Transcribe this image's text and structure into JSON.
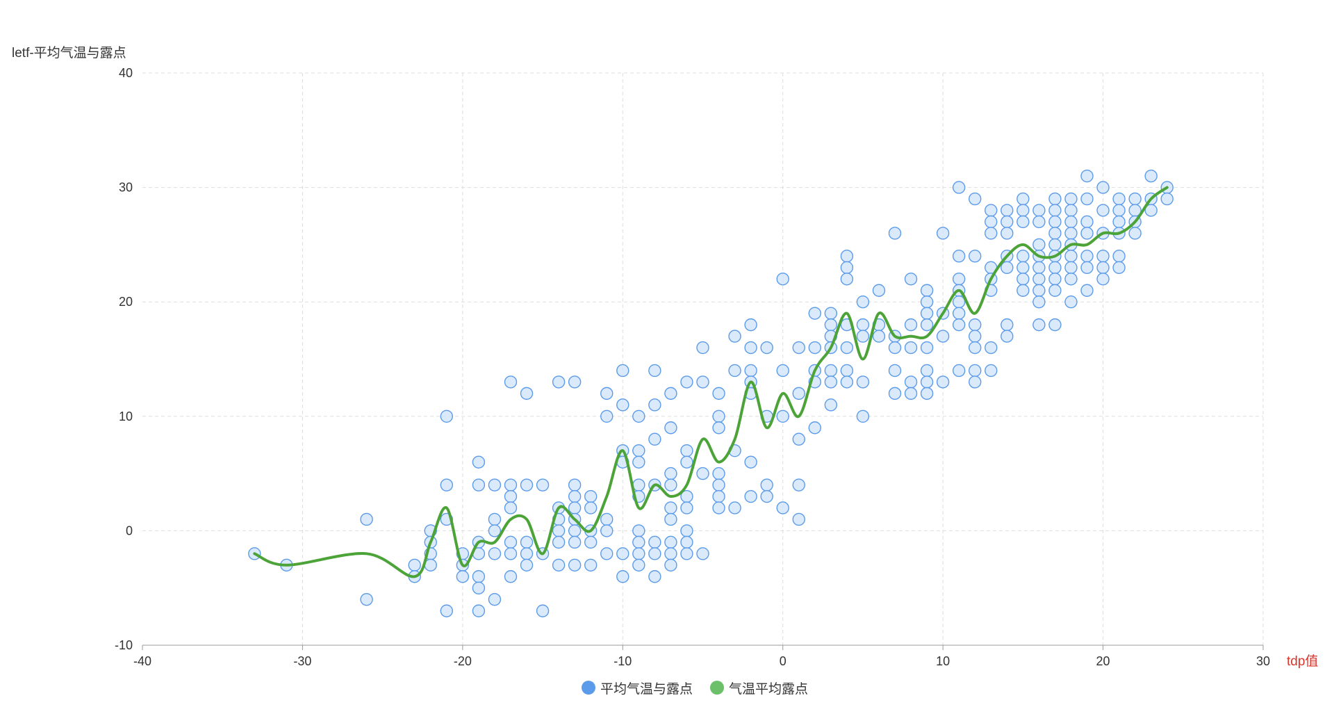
{
  "chart_data": {
    "type": "scatter",
    "ylabel": "letf-平均气温与露点",
    "xlabel": "tdp值",
    "xlim": [
      -40,
      30
    ],
    "ylim": [
      -10,
      40
    ],
    "xticks": [
      "-40",
      "-30",
      "-20",
      "-10",
      "0",
      "10",
      "20",
      "30"
    ],
    "yticks": [
      "-10",
      "0",
      "10",
      "20",
      "30",
      "40"
    ],
    "grid": true,
    "legend_position": "bottom-center",
    "colors": {
      "scatter_fill": "#cfe3fa",
      "scatter_stroke": "#5b9bea",
      "line": "#4ca337",
      "legend_scatter": "#5b9bea",
      "legend_line": "#6cc06a",
      "xlabel": "#d9342b"
    },
    "series": [
      {
        "name": "平均气温与露点",
        "type": "scatter",
        "points": [
          [
            -33,
            -2
          ],
          [
            -31,
            -3
          ],
          [
            -26,
            1
          ],
          [
            -26,
            -6
          ],
          [
            -23,
            -3
          ],
          [
            -23,
            -4
          ],
          [
            -22,
            0
          ],
          [
            -22,
            -1
          ],
          [
            -22,
            -2
          ],
          [
            -22,
            -3
          ],
          [
            -21,
            10
          ],
          [
            -21,
            4
          ],
          [
            -21,
            1
          ],
          [
            -21,
            -7
          ],
          [
            -20,
            -2
          ],
          [
            -20,
            -3
          ],
          [
            -20,
            -4
          ],
          [
            -19,
            6
          ],
          [
            -19,
            4
          ],
          [
            -19,
            -1
          ],
          [
            -19,
            -2
          ],
          [
            -19,
            -4
          ],
          [
            -19,
            -5
          ],
          [
            -19,
            -7
          ],
          [
            -18,
            4
          ],
          [
            -18,
            1
          ],
          [
            -18,
            0
          ],
          [
            -18,
            -2
          ],
          [
            -18,
            -6
          ],
          [
            -17,
            13
          ],
          [
            -17,
            4
          ],
          [
            -17,
            3
          ],
          [
            -17,
            2
          ],
          [
            -17,
            -1
          ],
          [
            -17,
            -2
          ],
          [
            -17,
            -4
          ],
          [
            -16,
            12
          ],
          [
            -16,
            4
          ],
          [
            -16,
            -1
          ],
          [
            -16,
            -2
          ],
          [
            -16,
            -3
          ],
          [
            -15,
            4
          ],
          [
            -15,
            -2
          ],
          [
            -15,
            -7
          ],
          [
            -14,
            13
          ],
          [
            -14,
            2
          ],
          [
            -14,
            1
          ],
          [
            -14,
            0
          ],
          [
            -14,
            -1
          ],
          [
            -14,
            -3
          ],
          [
            -13,
            13
          ],
          [
            -13,
            4
          ],
          [
            -13,
            3
          ],
          [
            -13,
            2
          ],
          [
            -13,
            1
          ],
          [
            -13,
            0
          ],
          [
            -13,
            -1
          ],
          [
            -13,
            -3
          ],
          [
            -12,
            3
          ],
          [
            -12,
            2
          ],
          [
            -12,
            0
          ],
          [
            -12,
            -1
          ],
          [
            -12,
            -3
          ],
          [
            -11,
            12
          ],
          [
            -11,
            10
          ],
          [
            -11,
            1
          ],
          [
            -11,
            0
          ],
          [
            -11,
            -2
          ],
          [
            -10,
            14
          ],
          [
            -10,
            11
          ],
          [
            -10,
            7
          ],
          [
            -10,
            6
          ],
          [
            -10,
            -2
          ],
          [
            -10,
            -4
          ],
          [
            -9,
            10
          ],
          [
            -9,
            7
          ],
          [
            -9,
            6
          ],
          [
            -9,
            4
          ],
          [
            -9,
            3
          ],
          [
            -9,
            0
          ],
          [
            -9,
            -1
          ],
          [
            -9,
            -2
          ],
          [
            -9,
            -3
          ],
          [
            -8,
            14
          ],
          [
            -8,
            11
          ],
          [
            -8,
            8
          ],
          [
            -8,
            4
          ],
          [
            -8,
            -1
          ],
          [
            -8,
            -2
          ],
          [
            -8,
            -4
          ],
          [
            -7,
            12
          ],
          [
            -7,
            9
          ],
          [
            -7,
            5
          ],
          [
            -7,
            4
          ],
          [
            -7,
            2
          ],
          [
            -7,
            1
          ],
          [
            -7,
            -1
          ],
          [
            -7,
            -2
          ],
          [
            -7,
            -3
          ],
          [
            -6,
            13
          ],
          [
            -6,
            7
          ],
          [
            -6,
            6
          ],
          [
            -6,
            3
          ],
          [
            -6,
            2
          ],
          [
            -6,
            0
          ],
          [
            -6,
            -1
          ],
          [
            -6,
            -2
          ],
          [
            -5,
            16
          ],
          [
            -5,
            13
          ],
          [
            -5,
            5
          ],
          [
            -5,
            -2
          ],
          [
            -4,
            12
          ],
          [
            -4,
            10
          ],
          [
            -4,
            9
          ],
          [
            -4,
            5
          ],
          [
            -4,
            4
          ],
          [
            -4,
            3
          ],
          [
            -4,
            2
          ],
          [
            -3,
            17
          ],
          [
            -3,
            14
          ],
          [
            -3,
            7
          ],
          [
            -3,
            2
          ],
          [
            -2,
            18
          ],
          [
            -2,
            16
          ],
          [
            -2,
            14
          ],
          [
            -2,
            13
          ],
          [
            -2,
            12
          ],
          [
            -2,
            6
          ],
          [
            -2,
            3
          ],
          [
            -1,
            16
          ],
          [
            -1,
            10
          ],
          [
            -1,
            4
          ],
          [
            -1,
            3
          ],
          [
            0,
            22
          ],
          [
            0,
            14
          ],
          [
            0,
            10
          ],
          [
            0,
            2
          ],
          [
            1,
            16
          ],
          [
            1,
            12
          ],
          [
            1,
            8
          ],
          [
            1,
            4
          ],
          [
            1,
            1
          ],
          [
            2,
            19
          ],
          [
            2,
            16
          ],
          [
            2,
            14
          ],
          [
            2,
            13
          ],
          [
            2,
            9
          ],
          [
            3,
            19
          ],
          [
            3,
            18
          ],
          [
            3,
            17
          ],
          [
            3,
            16
          ],
          [
            3,
            14
          ],
          [
            3,
            13
          ],
          [
            3,
            11
          ],
          [
            4,
            24
          ],
          [
            4,
            23
          ],
          [
            4,
            22
          ],
          [
            4,
            18
          ],
          [
            4,
            16
          ],
          [
            4,
            14
          ],
          [
            4,
            13
          ],
          [
            5,
            20
          ],
          [
            5,
            18
          ],
          [
            5,
            17
          ],
          [
            5,
            13
          ],
          [
            5,
            10
          ],
          [
            6,
            21
          ],
          [
            6,
            18
          ],
          [
            6,
            17
          ],
          [
            7,
            26
          ],
          [
            7,
            17
          ],
          [
            7,
            16
          ],
          [
            7,
            14
          ],
          [
            7,
            12
          ],
          [
            8,
            22
          ],
          [
            8,
            18
          ],
          [
            8,
            16
          ],
          [
            8,
            13
          ],
          [
            8,
            12
          ],
          [
            9,
            21
          ],
          [
            9,
            20
          ],
          [
            9,
            19
          ],
          [
            9,
            18
          ],
          [
            9,
            16
          ],
          [
            9,
            14
          ],
          [
            9,
            13
          ],
          [
            9,
            12
          ],
          [
            10,
            26
          ],
          [
            10,
            19
          ],
          [
            10,
            17
          ],
          [
            10,
            13
          ],
          [
            11,
            30
          ],
          [
            11,
            24
          ],
          [
            11,
            22
          ],
          [
            11,
            21
          ],
          [
            11,
            20
          ],
          [
            11,
            19
          ],
          [
            11,
            18
          ],
          [
            11,
            14
          ],
          [
            12,
            29
          ],
          [
            12,
            24
          ],
          [
            12,
            18
          ],
          [
            12,
            17
          ],
          [
            12,
            16
          ],
          [
            12,
            14
          ],
          [
            12,
            13
          ],
          [
            13,
            28
          ],
          [
            13,
            27
          ],
          [
            13,
            26
          ],
          [
            13,
            23
          ],
          [
            13,
            22
          ],
          [
            13,
            21
          ],
          [
            13,
            16
          ],
          [
            13,
            14
          ],
          [
            14,
            28
          ],
          [
            14,
            27
          ],
          [
            14,
            26
          ],
          [
            14,
            24
          ],
          [
            14,
            23
          ],
          [
            14,
            18
          ],
          [
            14,
            17
          ],
          [
            15,
            29
          ],
          [
            15,
            28
          ],
          [
            15,
            27
          ],
          [
            15,
            24
          ],
          [
            15,
            23
          ],
          [
            15,
            22
          ],
          [
            15,
            21
          ],
          [
            16,
            28
          ],
          [
            16,
            27
          ],
          [
            16,
            25
          ],
          [
            16,
            24
          ],
          [
            16,
            23
          ],
          [
            16,
            22
          ],
          [
            16,
            21
          ],
          [
            16,
            20
          ],
          [
            16,
            18
          ],
          [
            17,
            29
          ],
          [
            17,
            28
          ],
          [
            17,
            27
          ],
          [
            17,
            26
          ],
          [
            17,
            25
          ],
          [
            17,
            24
          ],
          [
            17,
            23
          ],
          [
            17,
            22
          ],
          [
            17,
            21
          ],
          [
            17,
            18
          ],
          [
            18,
            29
          ],
          [
            18,
            28
          ],
          [
            18,
            27
          ],
          [
            18,
            26
          ],
          [
            18,
            25
          ],
          [
            18,
            24
          ],
          [
            18,
            23
          ],
          [
            18,
            22
          ],
          [
            18,
            20
          ],
          [
            19,
            31
          ],
          [
            19,
            29
          ],
          [
            19,
            27
          ],
          [
            19,
            26
          ],
          [
            19,
            24
          ],
          [
            19,
            23
          ],
          [
            19,
            21
          ],
          [
            20,
            30
          ],
          [
            20,
            28
          ],
          [
            20,
            26
          ],
          [
            20,
            24
          ],
          [
            20,
            23
          ],
          [
            20,
            22
          ],
          [
            21,
            29
          ],
          [
            21,
            28
          ],
          [
            21,
            27
          ],
          [
            21,
            26
          ],
          [
            21,
            24
          ],
          [
            21,
            23
          ],
          [
            22,
            29
          ],
          [
            22,
            28
          ],
          [
            22,
            27
          ],
          [
            22,
            26
          ],
          [
            23,
            31
          ],
          [
            23,
            29
          ],
          [
            23,
            28
          ],
          [
            24,
            30
          ],
          [
            24,
            29
          ]
        ]
      },
      {
        "name": "气温平均露点",
        "type": "line",
        "smooth": true,
        "points": [
          [
            -33,
            -2
          ],
          [
            -31,
            -3
          ],
          [
            -26,
            -2
          ],
          [
            -23,
            -4
          ],
          [
            -22,
            -1
          ],
          [
            -21,
            2
          ],
          [
            -20,
            -3
          ],
          [
            -19,
            -1
          ],
          [
            -18,
            -1
          ],
          [
            -17,
            1
          ],
          [
            -16,
            1
          ],
          [
            -15,
            -2
          ],
          [
            -14,
            2
          ],
          [
            -13,
            1
          ],
          [
            -12,
            0
          ],
          [
            -11,
            3
          ],
          [
            -10,
            7
          ],
          [
            -9,
            2
          ],
          [
            -8,
            4
          ],
          [
            -7,
            3
          ],
          [
            -6,
            4
          ],
          [
            -5,
            8
          ],
          [
            -4,
            6
          ],
          [
            -3,
            8
          ],
          [
            -2,
            13
          ],
          [
            -1,
            9
          ],
          [
            0,
            12
          ],
          [
            1,
            10
          ],
          [
            2,
            14
          ],
          [
            3,
            16
          ],
          [
            4,
            19
          ],
          [
            5,
            15
          ],
          [
            6,
            19
          ],
          [
            7,
            17
          ],
          [
            8,
            17
          ],
          [
            9,
            17
          ],
          [
            10,
            19
          ],
          [
            11,
            21
          ],
          [
            12,
            19
          ],
          [
            13,
            22
          ],
          [
            14,
            24
          ],
          [
            15,
            25
          ],
          [
            16,
            24
          ],
          [
            17,
            24
          ],
          [
            18,
            25
          ],
          [
            19,
            25
          ],
          [
            20,
            26
          ],
          [
            21,
            26
          ],
          [
            22,
            27
          ],
          [
            23,
            29
          ],
          [
            24,
            30
          ]
        ]
      }
    ]
  }
}
